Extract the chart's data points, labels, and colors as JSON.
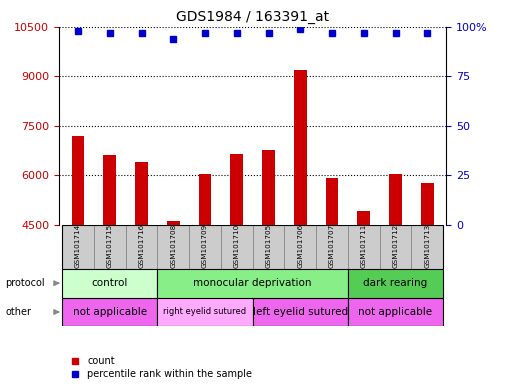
{
  "title": "GDS1984 / 163391_at",
  "samples": [
    "GSM101714",
    "GSM101715",
    "GSM101716",
    "GSM101708",
    "GSM101709",
    "GSM101710",
    "GSM101705",
    "GSM101706",
    "GSM101707",
    "GSM101711",
    "GSM101712",
    "GSM101713"
  ],
  "counts": [
    7200,
    6600,
    6400,
    4600,
    6050,
    6650,
    6750,
    9200,
    5900,
    4900,
    6050,
    5750
  ],
  "percentile_ranks": [
    98,
    97,
    97,
    94,
    97,
    97,
    97,
    99,
    97,
    97,
    97,
    97
  ],
  "ylim_left": [
    4500,
    10500
  ],
  "ylim_right": [
    0,
    100
  ],
  "yticks_left": [
    4500,
    6000,
    7500,
    9000,
    10500
  ],
  "yticks_right": [
    0,
    25,
    50,
    75,
    100
  ],
  "bar_color": "#cc0000",
  "dot_color": "#0000cc",
  "protocol_groups": [
    {
      "label": "control",
      "start": 0,
      "end": 3,
      "color": "#ccffcc"
    },
    {
      "label": "monocular deprivation",
      "start": 3,
      "end": 9,
      "color": "#88ee88"
    },
    {
      "label": "dark rearing",
      "start": 9,
      "end": 12,
      "color": "#55cc55"
    }
  ],
  "other_groups": [
    {
      "label": "not applicable",
      "start": 0,
      "end": 3,
      "color": "#ee66ee"
    },
    {
      "label": "right eyelid sutured",
      "start": 3,
      "end": 6,
      "color": "#ffaaff"
    },
    {
      "label": "left eyelid sutured",
      "start": 6,
      "end": 9,
      "color": "#ee66ee"
    },
    {
      "label": "not applicable",
      "start": 9,
      "end": 12,
      "color": "#ee66ee"
    }
  ],
  "legend_count_color": "#cc0000",
  "legend_dot_color": "#0000cc",
  "tick_label_color_left": "#cc0000",
  "tick_label_color_right": "#0000cc",
  "background_color": "#ffffff",
  "bar_width": 0.4,
  "sample_box_color": "#cccccc",
  "sample_box_edge": "#888888"
}
